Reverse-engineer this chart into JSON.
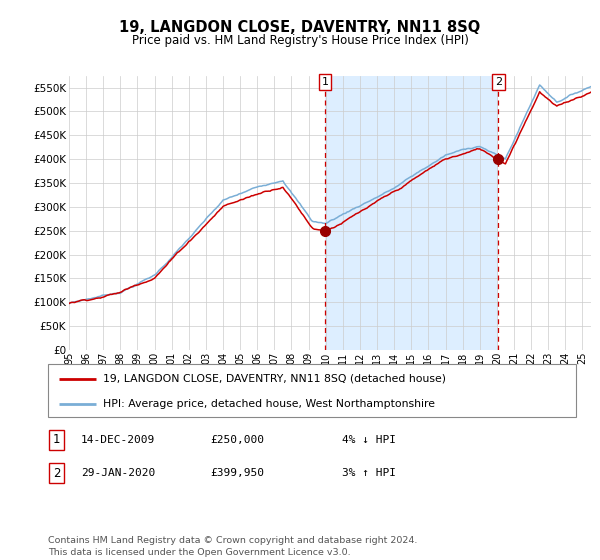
{
  "title": "19, LANGDON CLOSE, DAVENTRY, NN11 8SQ",
  "subtitle": "Price paid vs. HM Land Registry's House Price Index (HPI)",
  "legend_line1": "19, LANGDON CLOSE, DAVENTRY, NN11 8SQ (detached house)",
  "legend_line2": "HPI: Average price, detached house, West Northamptonshire",
  "transaction1": {
    "label": "1",
    "date": "14-DEC-2009",
    "price": 250000,
    "hpi_diff": "4% ↓ HPI"
  },
  "transaction2": {
    "label": "2",
    "date": "29-JAN-2020",
    "price": 399950,
    "hpi_diff": "3% ↑ HPI"
  },
  "footer": "Contains HM Land Registry data © Crown copyright and database right 2024.\nThis data is licensed under the Open Government Licence v3.0.",
  "hpi_color": "#7aaed6",
  "price_color": "#cc0000",
  "marker_color": "#990000",
  "vline_color": "#cc0000",
  "shade_color": "#ddeeff",
  "ylim": [
    0,
    575000
  ],
  "yticks": [
    0,
    50000,
    100000,
    150000,
    200000,
    250000,
    300000,
    350000,
    400000,
    450000,
    500000,
    550000
  ],
  "background_color": "#ffffff",
  "grid_color": "#cccccc",
  "t1_year_float": 2009.958,
  "t2_year_float": 2020.083,
  "t1_price": 250000,
  "t2_price": 399950
}
